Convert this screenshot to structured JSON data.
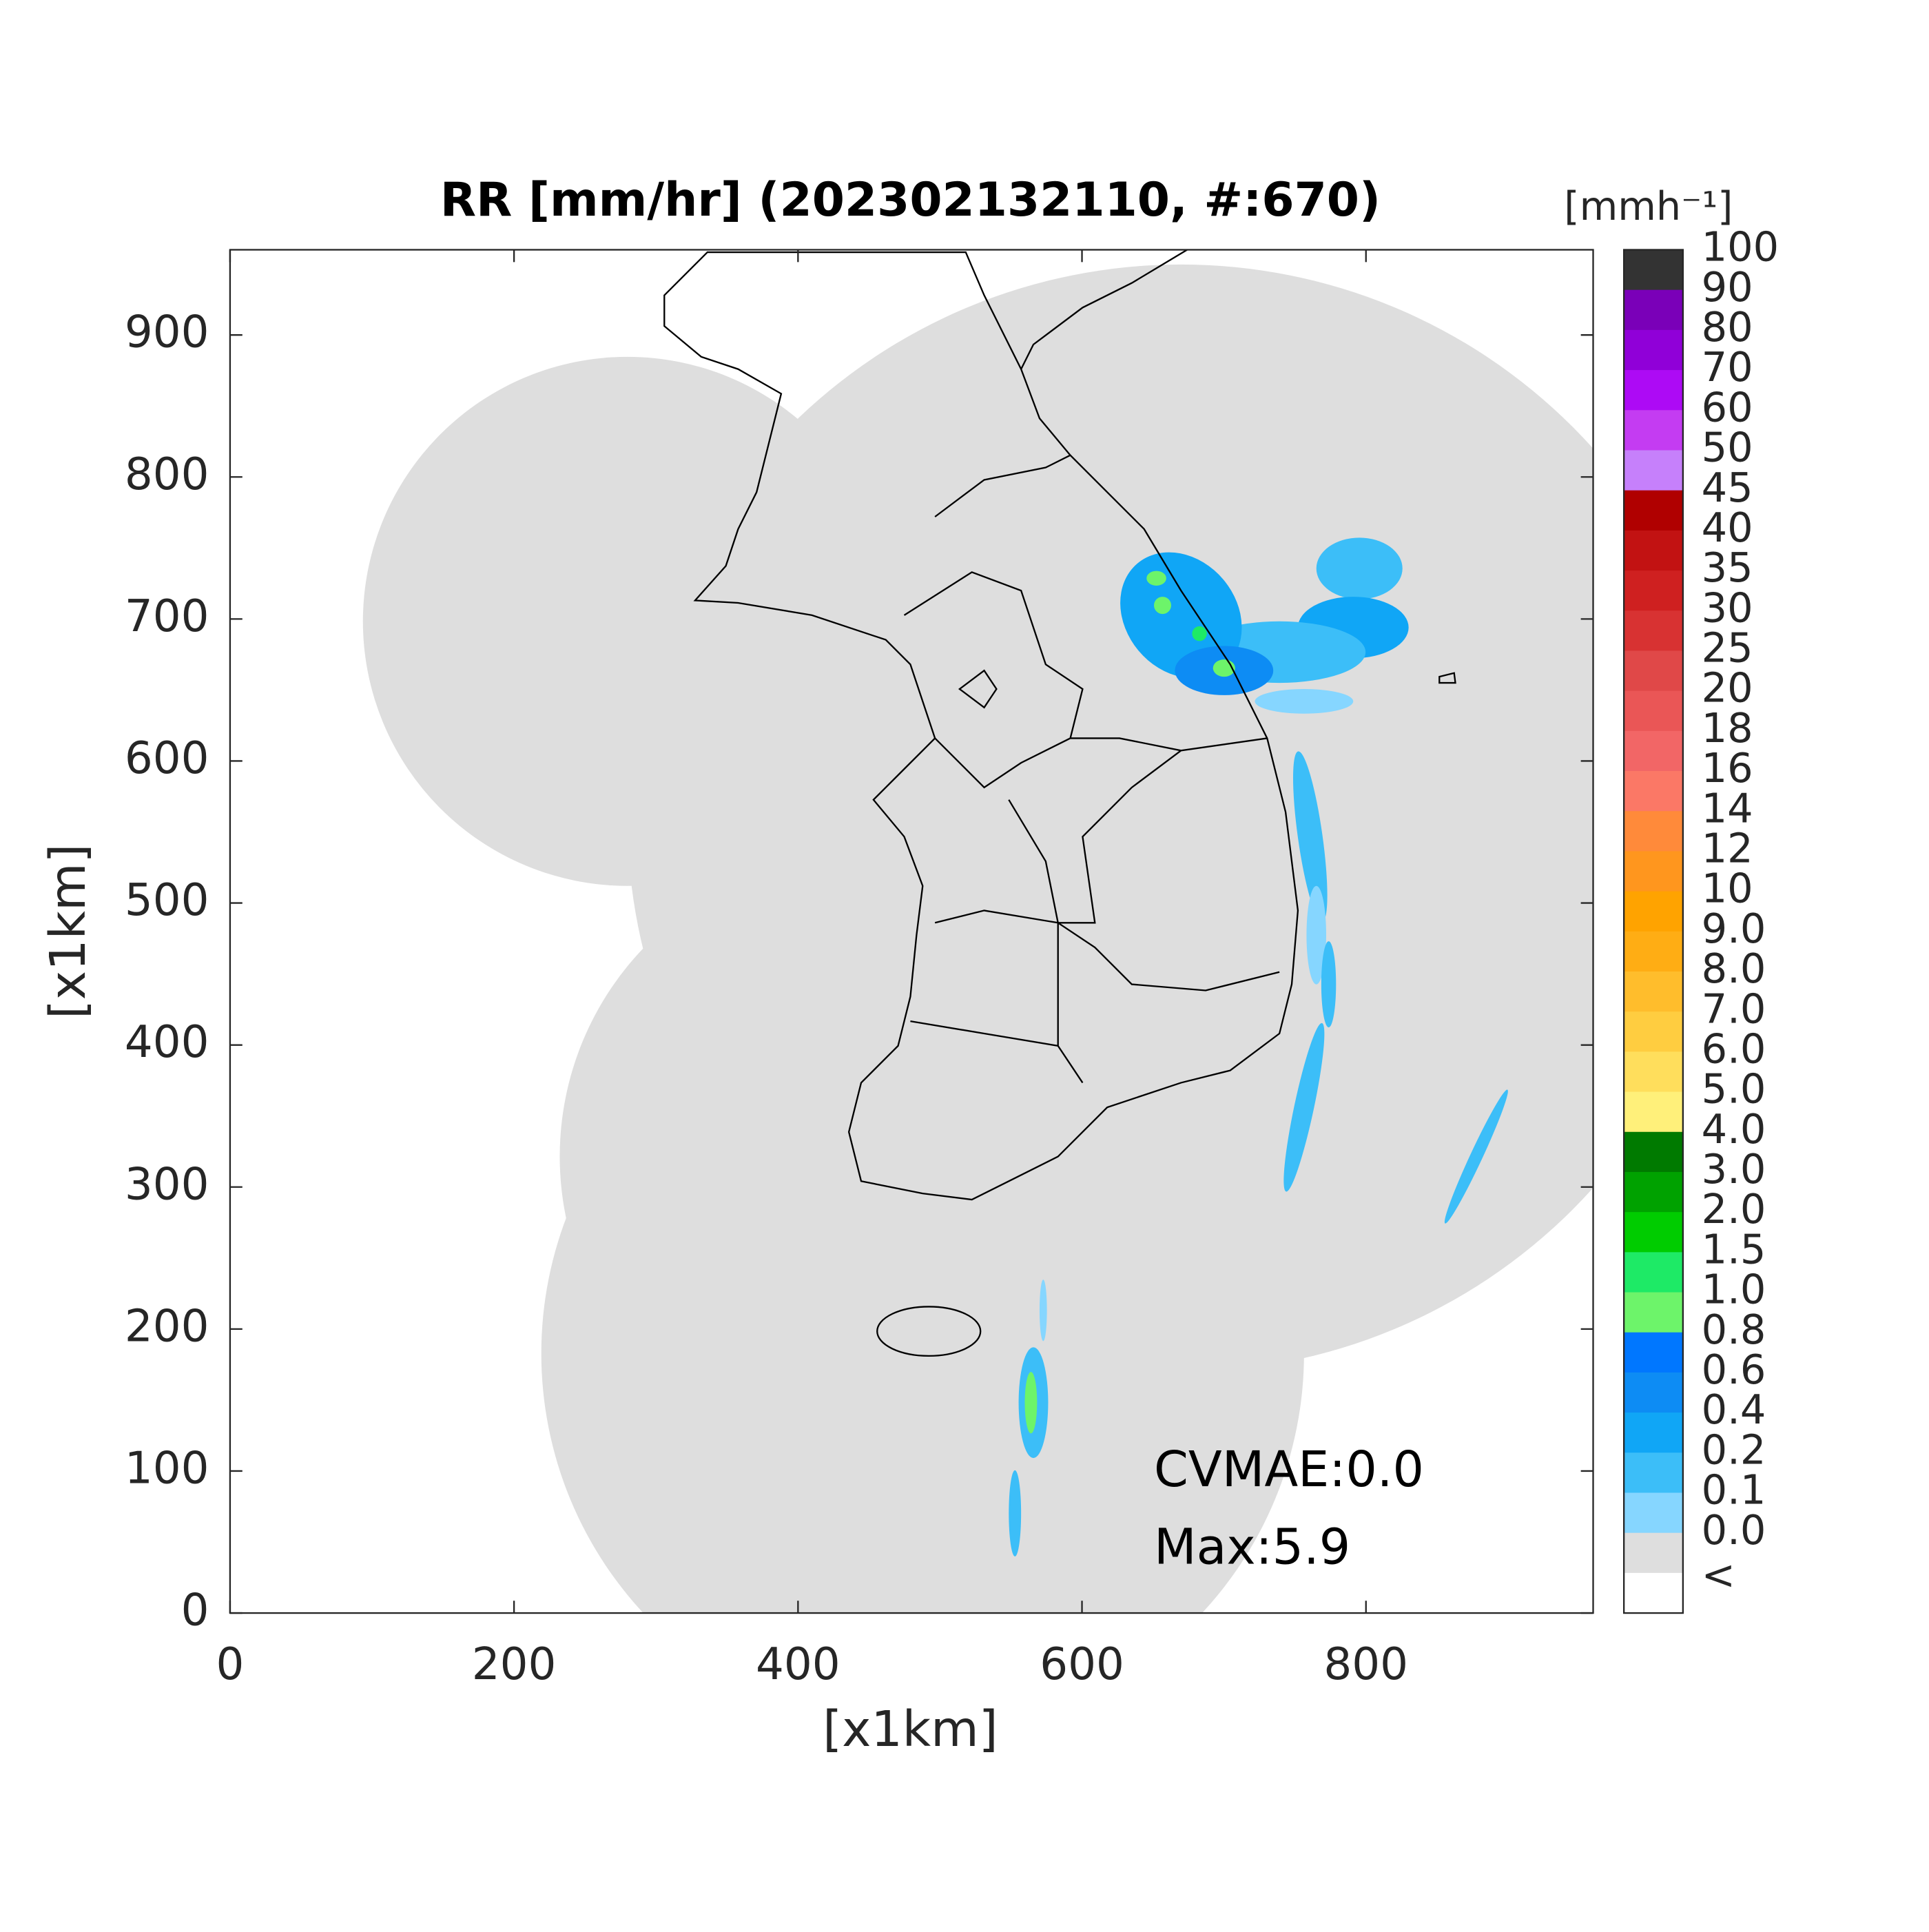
{
  "chart_data": {
    "type": "map",
    "title": "RR [mm/hr] (202302132110, #:670)",
    "xlabel": "[x1km]",
    "ylabel": "[x1km]",
    "xlim": [
      0,
      960
    ],
    "ylim": [
      0,
      960
    ],
    "xticks": [
      0,
      200,
      400,
      600,
      800
    ],
    "yticks": [
      0,
      100,
      200,
      300,
      400,
      500,
      600,
      700,
      800,
      900
    ],
    "annotations": [
      "CVMAE:0.0",
      "Max:5.9"
    ],
    "colorbar": {
      "title": "[mmh⁻¹]",
      "labels": [
        "100",
        "90",
        "80",
        "70",
        "60",
        "50",
        "45",
        "40",
        "35",
        "30",
        "25",
        "20",
        "18",
        "16",
        "14",
        "12",
        "10",
        "9.0",
        "8.0",
        "7.0",
        "6.0",
        "5.0",
        "4.0",
        "3.0",
        "2.0",
        "1.5",
        "1.0",
        "0.8",
        "0.6",
        "0.4",
        "0.2",
        "0.1",
        "0.0",
        "<"
      ],
      "colors": [
        "#333333",
        "#7a00b8",
        "#9000d8",
        "#ad0af5",
        "#c43cf2",
        "#c680fb",
        "#b00000",
        "#c21212",
        "#cf2020",
        "#d83232",
        "#e04848",
        "#ea5656",
        "#f26666",
        "#fb7866",
        "#ff8a3a",
        "#ff961e",
        "#ffa300",
        "#ffad14",
        "#ffbd2c",
        "#ffcd40",
        "#ffde5c",
        "#fff07a",
        "#007a00",
        "#00a200",
        "#00cc00",
        "#1eea66",
        "#6df46a",
        "#0077ff",
        "#0d8cf4",
        "#10a6f6",
        "#3cbef8",
        "#86d6ff",
        "#dedede",
        "#ffffff"
      ]
    }
  }
}
